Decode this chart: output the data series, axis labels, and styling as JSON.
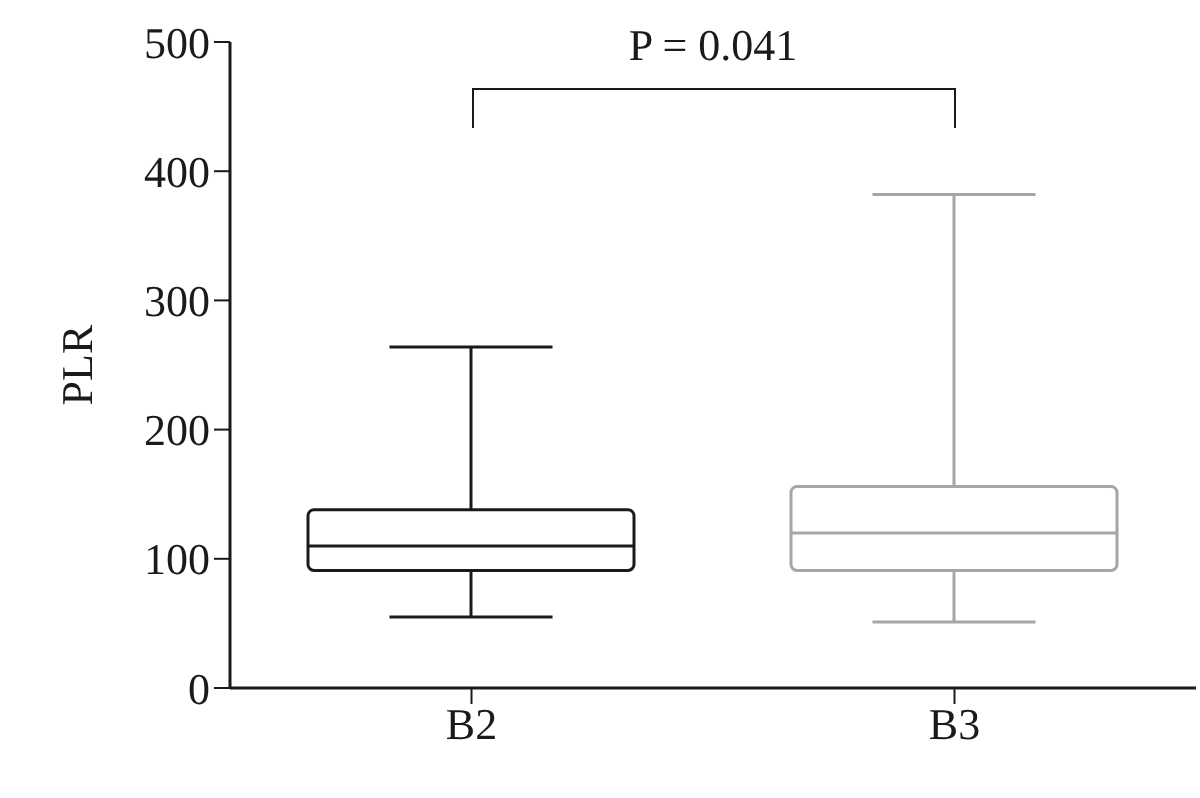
{
  "chart_data": {
    "type": "box",
    "ylabel": "PLR",
    "categories": [
      "B2",
      "B3"
    ],
    "series": [
      {
        "color": "#1a1a1a",
        "boxes": [
          {
            "low": 55,
            "q1": 91,
            "median": 110,
            "q3": 138,
            "high": 264
          },
          null
        ]
      },
      {
        "color": "#a6a6a6",
        "boxes": [
          null,
          {
            "low": 51,
            "q1": 91,
            "median": 120,
            "q3": 156,
            "high": 382
          }
        ]
      }
    ],
    "ylim": [
      0,
      500
    ],
    "yticks": [
      0,
      100,
      200,
      300,
      400,
      500
    ],
    "annotations": [
      "P = 0.041"
    ]
  }
}
